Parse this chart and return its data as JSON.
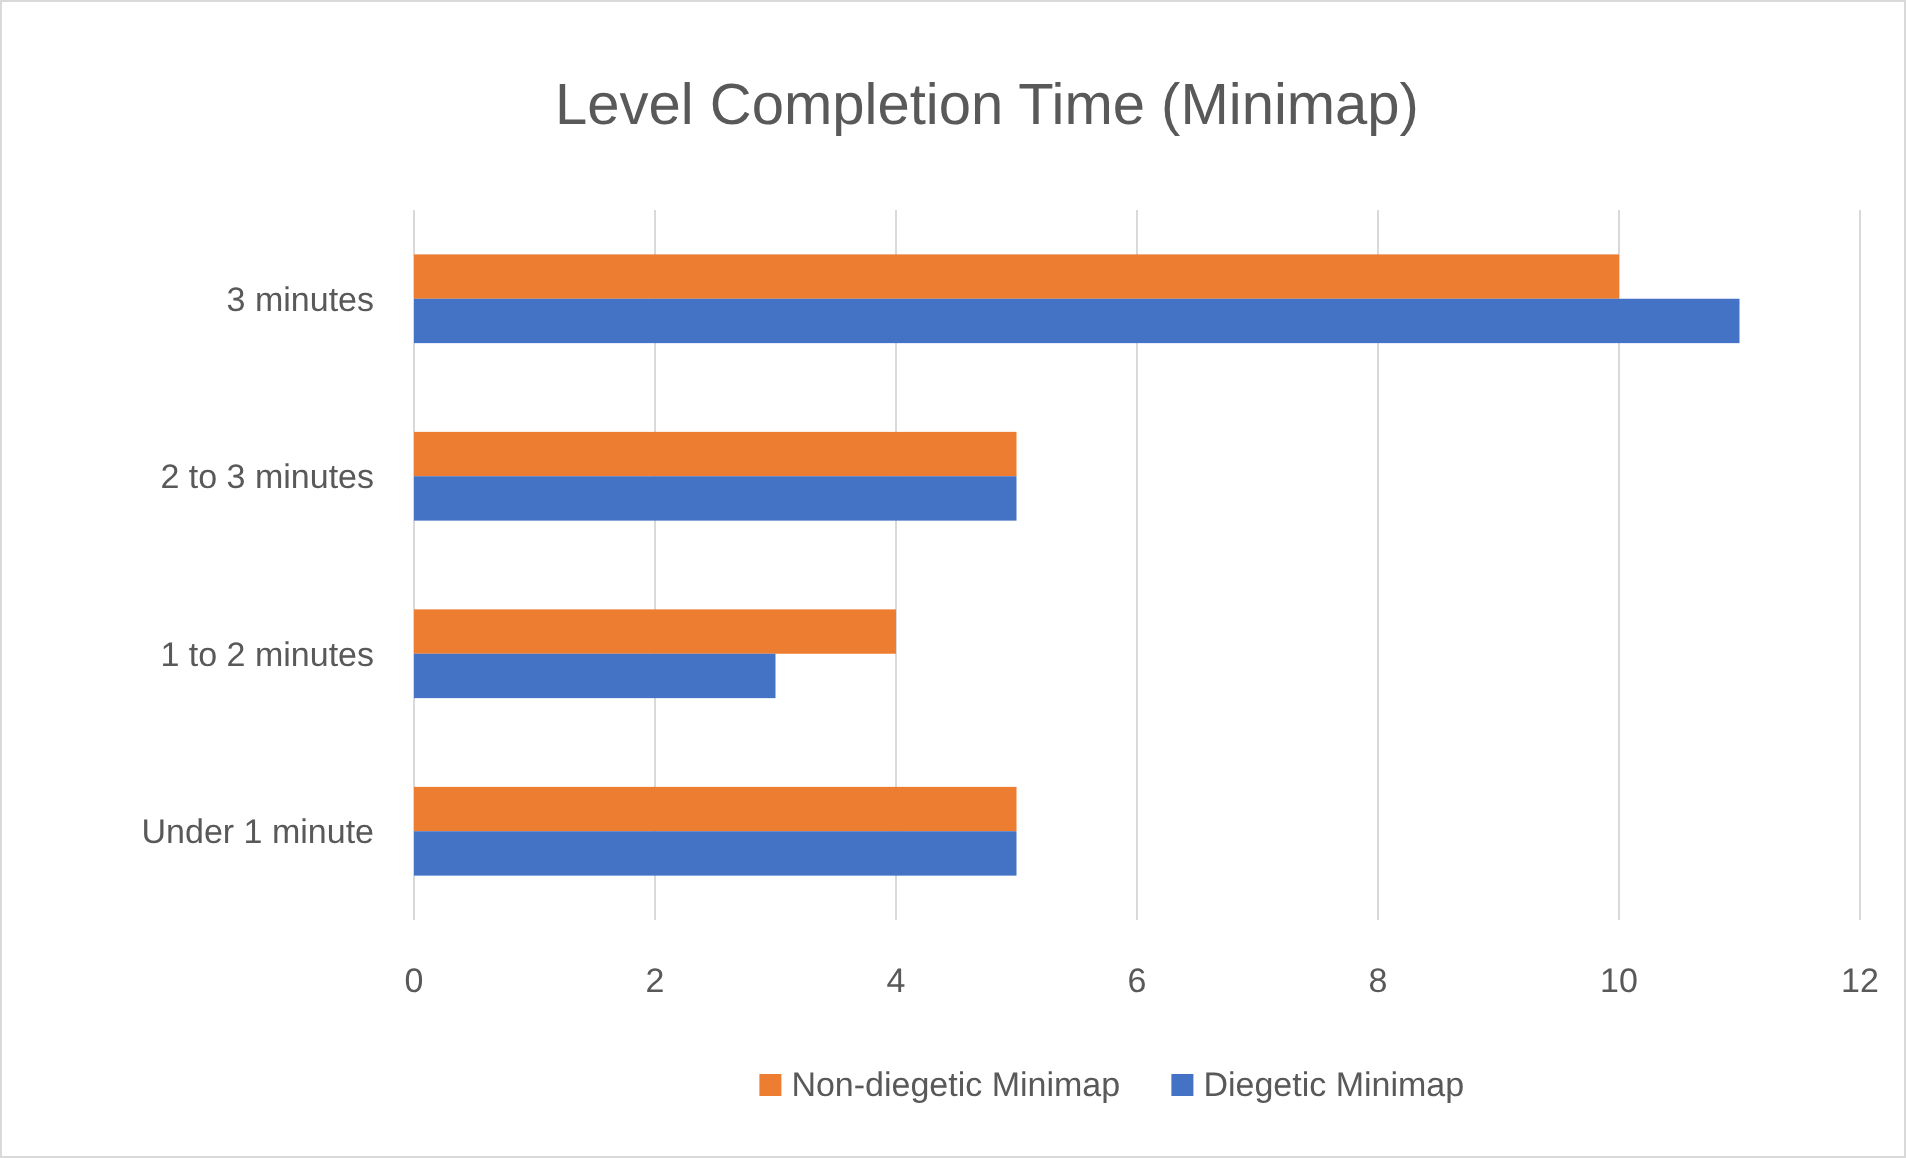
{
  "chart_data": {
    "type": "bar",
    "orientation": "horizontal",
    "title": "Level Completion Time (Minimap)",
    "categories": [
      "3 minutes",
      "2 to 3 minutes",
      "1 to 2 minutes",
      "Under 1 minute"
    ],
    "series": [
      {
        "name": "Non-diegetic Minimap",
        "color": "#ed7d31",
        "values": [
          10,
          5,
          4,
          5
        ]
      },
      {
        "name": "Diegetic Minimap",
        "color": "#4472c4",
        "values": [
          11,
          5,
          3,
          5
        ]
      }
    ],
    "xlim": [
      0,
      12
    ],
    "xticks": [
      0,
      2,
      4,
      6,
      8,
      10,
      12
    ],
    "grid": "x",
    "legend": "bottom"
  }
}
